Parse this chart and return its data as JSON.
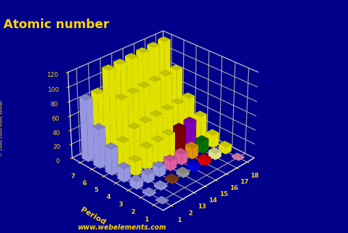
{
  "title": "Atomic number",
  "background_color": "#00008B",
  "title_color": "#FFD700",
  "axis_color": "#FFD700",
  "groups": [
    1,
    2,
    13,
    14,
    15,
    16,
    17,
    18
  ],
  "group_labels": [
    "1",
    "2",
    "13",
    "14",
    "15",
    "16",
    "17",
    "18"
  ],
  "periods": [
    1,
    2,
    3,
    4,
    5,
    6,
    7
  ],
  "atomic_numbers": {
    "1": [
      1,
      0,
      0,
      0,
      0,
      0,
      0,
      2
    ],
    "2": [
      3,
      4,
      5,
      6,
      7,
      8,
      9,
      10
    ],
    "3": [
      11,
      12,
      13,
      14,
      15,
      16,
      17,
      18
    ],
    "4": [
      19,
      20,
      31,
      32,
      33,
      34,
      35,
      36
    ],
    "5": [
      37,
      38,
      49,
      50,
      51,
      52,
      53,
      54
    ],
    "6": [
      55,
      56,
      81,
      82,
      83,
      84,
      85,
      86
    ],
    "7": [
      87,
      88,
      113,
      114,
      115,
      116,
      117,
      118
    ]
  },
  "bar_colors": {
    "0_0": "#AAAAFF",
    "0_1": "#AAAAFF",
    "0_2": "#AAAAFF",
    "0_3": "#AAAAFF",
    "0_4": "#AAAAFF",
    "0_5": "#AAAAFF",
    "0_6": "#AAAAFF",
    "1_0": "#FF99CC",
    "1_1": "#AAAAFF",
    "1_2": "#AAAAFF",
    "1_3": "#FFFF00",
    "1_4": "#FFFF00",
    "1_5": "#FFFF00",
    "1_6": "#FFFF00",
    "2_0": "#AAAAFF",
    "2_1": "#8B4513",
    "2_2": "#AAAAFF",
    "2_3": "#FFFF00",
    "2_4": "#FFFF00",
    "2_5": "#FFFF00",
    "2_6": "#FFFF00",
    "3_0": "#AAAAFF",
    "3_1": "#AAAAAA",
    "3_2": "#FF69B4",
    "3_3": "#FFFF00",
    "3_4": "#FFFF00",
    "3_5": "#FFFF00",
    "3_6": "#FFFF00",
    "4_0": "#AAAAFF",
    "4_1": "#0000FF",
    "4_2": "#FF69B4",
    "4_3": "#FFFF00",
    "4_4": "#FFFF00",
    "4_5": "#FFFF00",
    "4_6": "#FFFF00",
    "5_0": "#AAAAFF",
    "5_1": "#FF0000",
    "5_2": "#FFA500",
    "5_3": "#8B0000",
    "5_4": "#FFFF00",
    "5_5": "#FFFF00",
    "5_6": "#FFFF00",
    "6_0": "#AAAAFF",
    "6_1": "#FFFF99",
    "6_2": "#008000",
    "6_3": "#9400D3",
    "6_4": "#FFFF00",
    "6_5": "#FFFF00",
    "6_6": "#FFFF00",
    "7_0": "#FF99CC",
    "7_1": "#FFFF00",
    "7_2": "#FFFF00",
    "7_3": "#FFFF00",
    "7_4": "#FFFF00",
    "7_5": "#FFFF00",
    "7_6": "#FFFF00"
  },
  "zlim": [
    0,
    120
  ],
  "zticks": [
    0,
    20,
    40,
    60,
    80,
    100,
    120
  ],
  "elev": 30,
  "azim": 225,
  "website": "www.webelements.com",
  "floor_color": "#555555",
  "grid_color": "#FFFFFF"
}
